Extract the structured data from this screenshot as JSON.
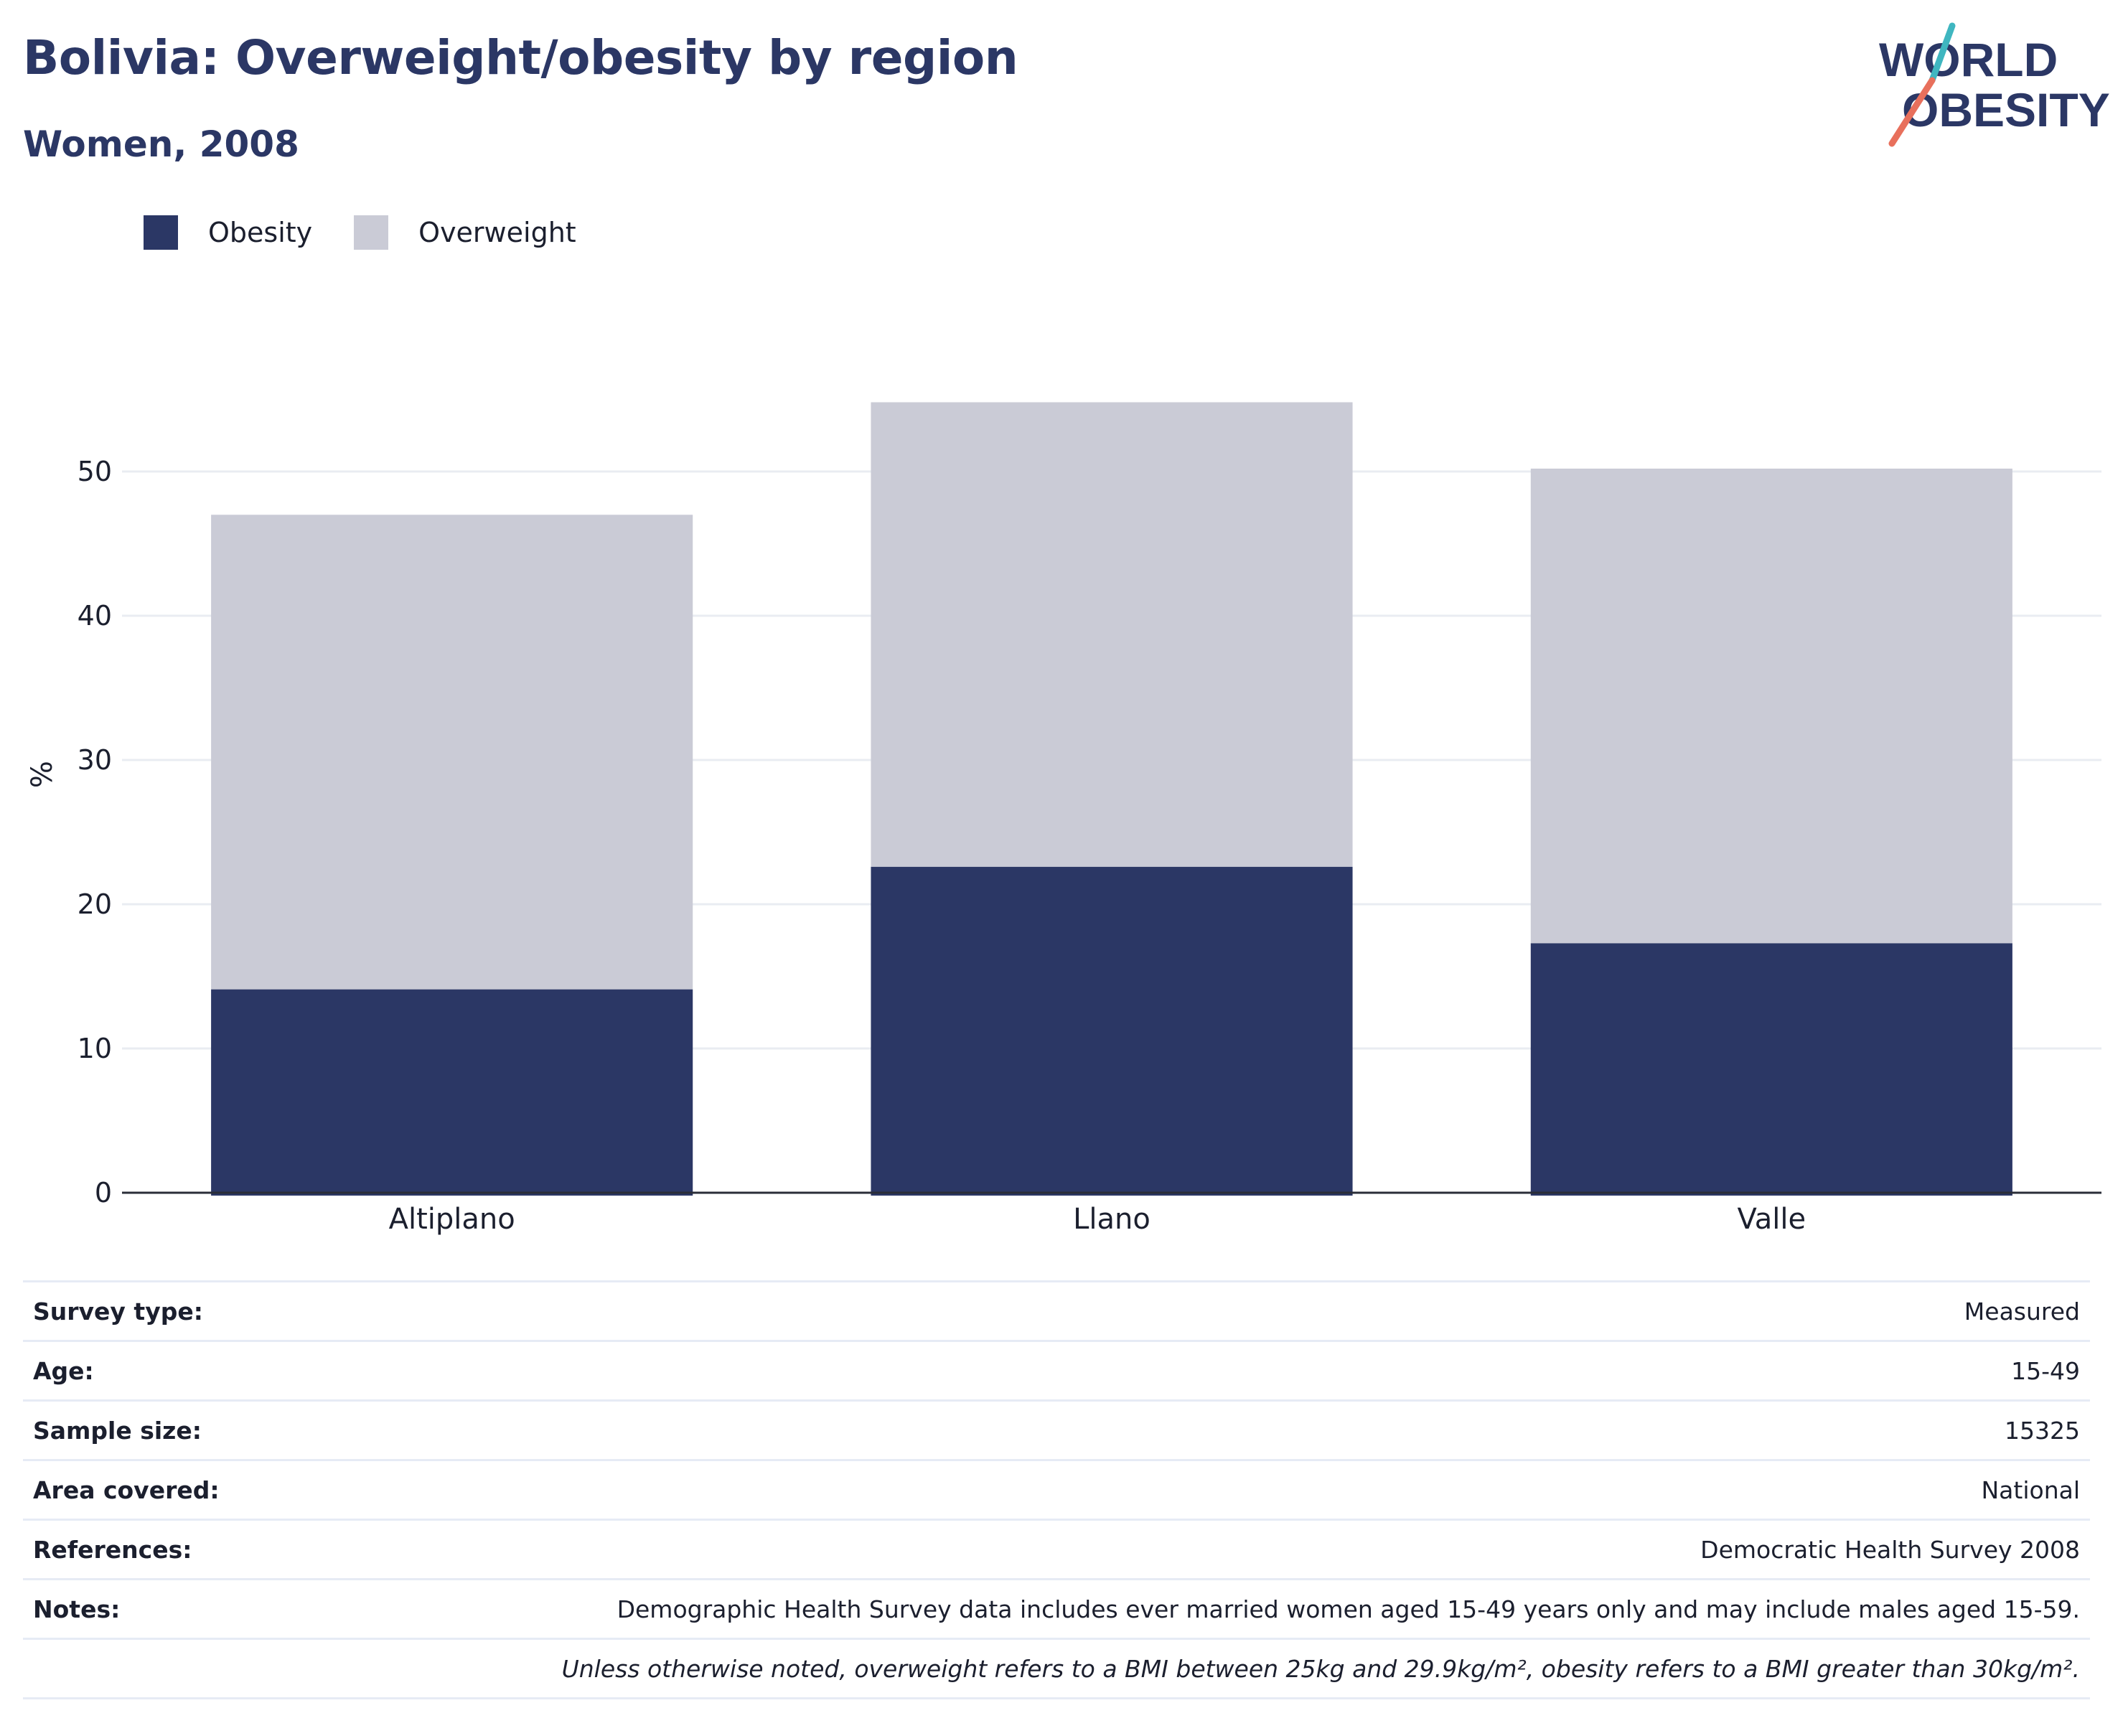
{
  "header": {
    "title": "Bolivia: Overweight/obesity by region",
    "subtitle": "Women, 2008"
  },
  "logo": {
    "line1": "WORLD",
    "line2": "OBESITY",
    "text_color": "#2b3765",
    "accent_teal": "#3fb6c0",
    "accent_coral": "#e8705c"
  },
  "legend": {
    "items": [
      {
        "label": "Obesity",
        "color": "#2b3765"
      },
      {
        "label": "Overweight",
        "color": "#cacbd6"
      }
    ]
  },
  "chart_data": {
    "type": "bar",
    "stacked": true,
    "categories": [
      "Altiplano",
      "Llano",
      "Valle"
    ],
    "series": [
      {
        "name": "Obesity",
        "color": "#2b3765",
        "values": [
          14.1,
          22.6,
          17.3
        ]
      },
      {
        "name": "Overweight",
        "color": "#cacbd6",
        "values": [
          32.9,
          32.2,
          32.9
        ]
      }
    ],
    "totals": [
      47.0,
      54.8,
      50.2
    ],
    "ylabel": "%",
    "ylim": [
      0,
      58
    ],
    "yticks": [
      0,
      10,
      20,
      30,
      40,
      50
    ],
    "grid": true,
    "legend_position": "top-left"
  },
  "info_table": {
    "rows": [
      {
        "key": "Survey type:",
        "value": "Measured"
      },
      {
        "key": "Age:",
        "value": "15-49"
      },
      {
        "key": "Sample size:",
        "value": "15325"
      },
      {
        "key": "Area covered:",
        "value": "National"
      },
      {
        "key": "References:",
        "value": "Democratic Health Survey 2008"
      },
      {
        "key": "Notes:",
        "value": "Demographic Health Survey data includes ever married women aged 15-49 years only and may include males aged 15-59."
      }
    ],
    "footnote": "Unless otherwise noted, overweight refers to a BMI between 25kg and 29.9kg/m², obesity refers to a BMI greater than 30kg/m²."
  }
}
